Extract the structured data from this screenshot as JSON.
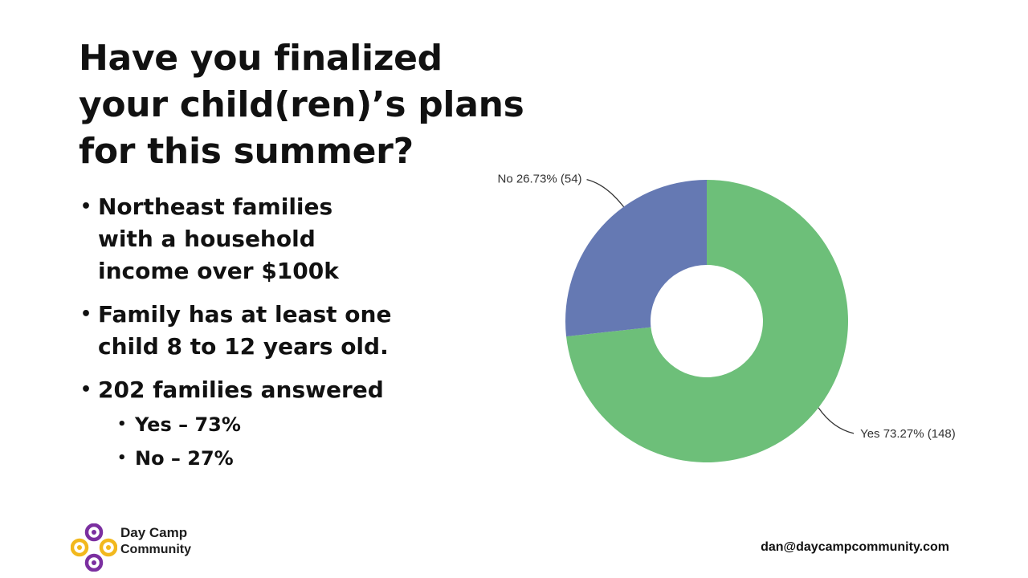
{
  "title_lines": [
    "Have you finalized",
    "your child(ren)’s plans",
    "for this summer?"
  ],
  "bullets": [
    {
      "lines": [
        "Northeast families",
        "with a household",
        "income over $100k"
      ]
    },
    {
      "lines": [
        "Family has at least one",
        "child 8 to 12 years old."
      ]
    },
    {
      "lines": [
        "202 families answered"
      ],
      "sub": [
        "Yes – 73%",
        "No – 27%"
      ]
    }
  ],
  "bullet_glyph": "•",
  "chart_data": {
    "type": "pie",
    "donut": true,
    "slices": [
      {
        "label": "Yes",
        "percent": 73.27,
        "count": 148,
        "color": "#6dbf79",
        "display": "Yes 73.27% (148)"
      },
      {
        "label": "No",
        "percent": 26.73,
        "count": 54,
        "color": "#6579b3",
        "display": "No 26.73% (54)"
      }
    ]
  },
  "logo": {
    "line1": "Day Camp",
    "line2": "Community",
    "colors": [
      "#7b2fa0",
      "#f2b81d"
    ]
  },
  "email": "dan@daycampcommunity.com"
}
